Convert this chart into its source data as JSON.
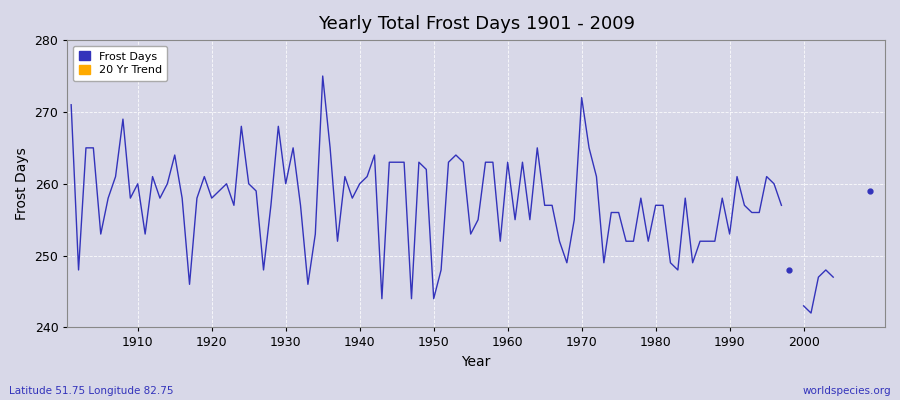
{
  "title": "Yearly Total Frost Days 1901 - 2009",
  "xlabel": "Year",
  "ylabel": "Frost Days",
  "bottom_left_label": "Latitude 51.75 Longitude 82.75",
  "bottom_right_label": "worldspecies.org",
  "ylim": [
    240,
    280
  ],
  "xlim": [
    1900.5,
    2011
  ],
  "background_color": "#d8d8e8",
  "plot_bg_color": "#d8d8e8",
  "line_color": "#3333bb",
  "trend_color": "#ffaa00",
  "years": [
    1901,
    1902,
    1903,
    1904,
    1905,
    1906,
    1907,
    1908,
    1909,
    1910,
    1911,
    1912,
    1913,
    1914,
    1915,
    1916,
    1917,
    1918,
    1919,
    1920,
    1921,
    1922,
    1923,
    1924,
    1925,
    1926,
    1927,
    1928,
    1929,
    1930,
    1931,
    1932,
    1933,
    1934,
    1935,
    1936,
    1937,
    1938,
    1939,
    1940,
    1941,
    1942,
    1943,
    1944,
    1945,
    1946,
    1947,
    1948,
    1949,
    1950,
    1951,
    1952,
    1953,
    1954,
    1955,
    1956,
    1957,
    1958,
    1959,
    1960,
    1961,
    1962,
    1963,
    1964,
    1965,
    1966,
    1967,
    1968,
    1969,
    1970,
    1971,
    1972,
    1973,
    1974,
    1975,
    1976,
    1977,
    1978,
    1979,
    1980,
    1981,
    1982,
    1983,
    1984,
    1985,
    1986,
    1987,
    1988,
    1989,
    1990,
    1991,
    1992,
    1993,
    1994,
    1995,
    1996,
    1997
  ],
  "frost_days": [
    271,
    248,
    265,
    265,
    253,
    258,
    261,
    269,
    258,
    260,
    253,
    261,
    258,
    260,
    264,
    258,
    246,
    258,
    261,
    258,
    259,
    260,
    257,
    268,
    260,
    259,
    248,
    257,
    268,
    260,
    265,
    257,
    246,
    253,
    275,
    265,
    252,
    261,
    258,
    260,
    261,
    264,
    244,
    263,
    263,
    263,
    244,
    263,
    262,
    244,
    248,
    263,
    264,
    263,
    253,
    255,
    263,
    263,
    252,
    263,
    255,
    263,
    255,
    265,
    257,
    257,
    252,
    249,
    255,
    272,
    265,
    261,
    249,
    256,
    256,
    252,
    252,
    258,
    252,
    257,
    257,
    249,
    248,
    258,
    249,
    252,
    252,
    252,
    258,
    253,
    261,
    257,
    256,
    256,
    261,
    260,
    257
  ],
  "isolated_1998": [
    1998,
    248
  ],
  "trend_segment": {
    "years": [
      2000,
      2001,
      2002,
      2003,
      2004
    ],
    "values": [
      243,
      242,
      247,
      248,
      247
    ]
  },
  "isolated_2009": [
    2009,
    259
  ],
  "yticks": [
    240,
    250,
    260,
    270,
    280
  ],
  "xticks": [
    1910,
    1920,
    1930,
    1940,
    1950,
    1960,
    1970,
    1980,
    1990,
    2000
  ]
}
